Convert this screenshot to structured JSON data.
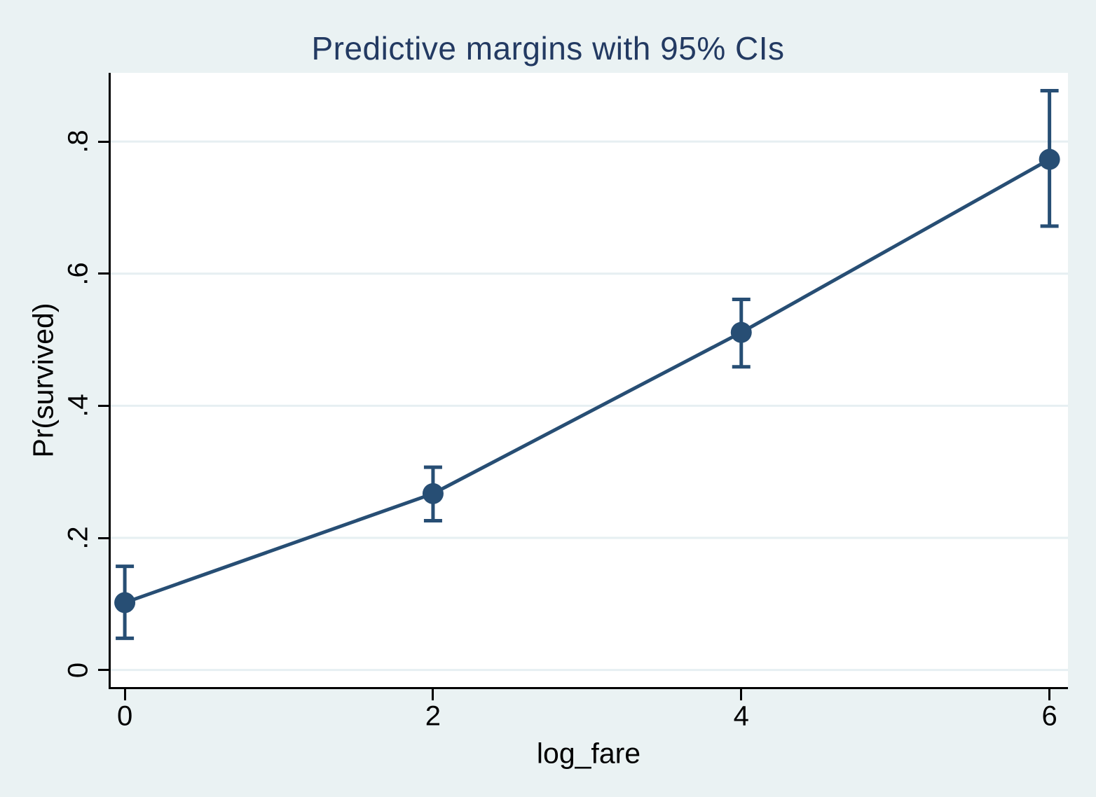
{
  "figure": {
    "background_color": "#eaf2f3",
    "plot_background_color": "#ffffff",
    "gridline_color": "#e6eff2",
    "axis_color": "#000000",
    "series_color": "#274e74",
    "title_color": "#233a62"
  },
  "chart_data": {
    "type": "line",
    "title": "Predictive margins with 95% CIs",
    "xlabel": "log_fare",
    "ylabel": "Pr(survived)",
    "x": [
      0,
      2,
      4,
      6
    ],
    "series": [
      {
        "name": "Predictive margins",
        "values": [
          0.102,
          0.267,
          0.511,
          0.773
        ],
        "ci_lower": [
          0.048,
          0.226,
          0.459,
          0.672
        ],
        "ci_upper": [
          0.157,
          0.307,
          0.561,
          0.877
        ]
      }
    ],
    "x_ticks": [
      0,
      2,
      4,
      6
    ],
    "x_tick_labels": [
      "0",
      "2",
      "4",
      "6"
    ],
    "y_ticks": [
      0,
      0.2,
      0.4,
      0.6,
      0.8
    ],
    "y_tick_labels": [
      "0",
      ".2",
      ".4",
      ".6",
      ".8"
    ],
    "xlim": [
      -0.105,
      6.12
    ],
    "ylim": [
      -0.029,
      0.904
    ],
    "grid": true,
    "legend": false,
    "error_bars": "95% CI"
  }
}
